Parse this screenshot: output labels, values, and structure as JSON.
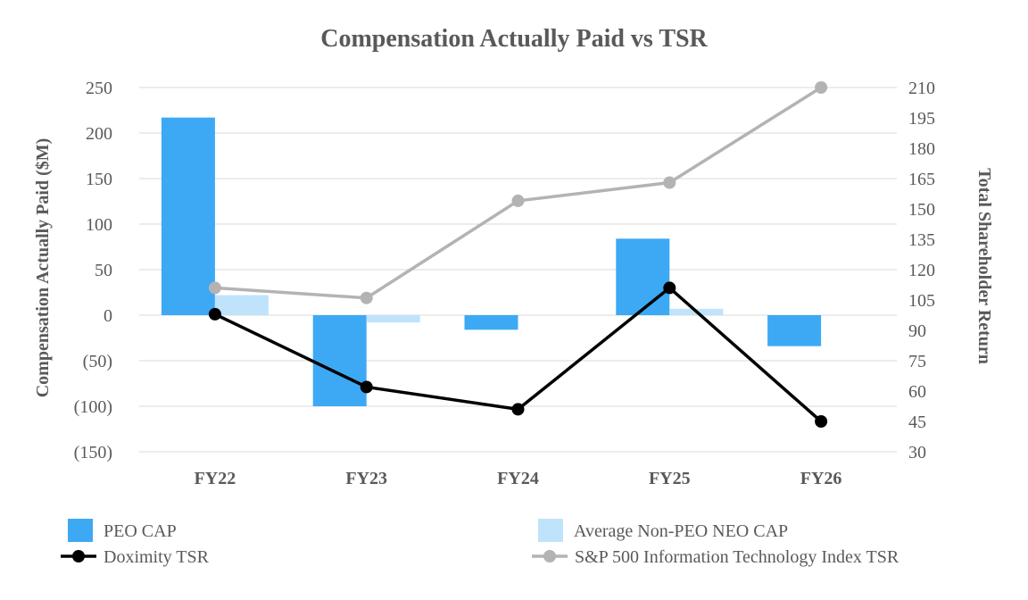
{
  "chart_data": {
    "type": "bar",
    "title": "Compensation Actually Paid vs TSR",
    "categories": [
      "FY22",
      "FY23",
      "FY24",
      "FY25",
      "FY26"
    ],
    "y_left": {
      "label": "Compensation Actually Paid ($M)",
      "range": [
        -150,
        250
      ],
      "ticks": [
        250,
        200,
        150,
        100,
        50,
        0,
        -50,
        -100,
        -150
      ],
      "tick_labels": [
        "250",
        "200",
        "150",
        "100",
        "50",
        "0",
        "(50)",
        "(100)",
        "(150)"
      ]
    },
    "y_right": {
      "label": "Total Shareholder Return",
      "range": [
        30,
        210
      ],
      "ticks": [
        210,
        195,
        180,
        165,
        150,
        135,
        120,
        105,
        90,
        75,
        60,
        45,
        30
      ],
      "tick_labels": [
        "210",
        "195",
        "180",
        "165",
        "150",
        "135",
        "120",
        "105",
        "90",
        "75",
        "60",
        "45",
        "30"
      ]
    },
    "grid": true,
    "legend_position": "bottom",
    "series": [
      {
        "name": "PEO CAP",
        "type": "bar",
        "axis": "left",
        "color": "#3da9f5",
        "values": [
          217,
          -100,
          -16,
          84,
          -34
        ]
      },
      {
        "name": "Average Non-PEO NEO CAP",
        "type": "bar",
        "axis": "left",
        "color": "#bfe3fb",
        "values": [
          22,
          -8,
          0,
          7,
          0
        ]
      },
      {
        "name": "Doximity TSR",
        "type": "line",
        "axis": "right",
        "color": "#000000",
        "values": [
          98,
          62,
          51,
          111,
          45
        ]
      },
      {
        "name": "S&P 500 Information Technology Index TSR",
        "type": "line",
        "axis": "right",
        "color": "#b3b3b3",
        "values": [
          111,
          106,
          154,
          163,
          210
        ]
      }
    ]
  }
}
